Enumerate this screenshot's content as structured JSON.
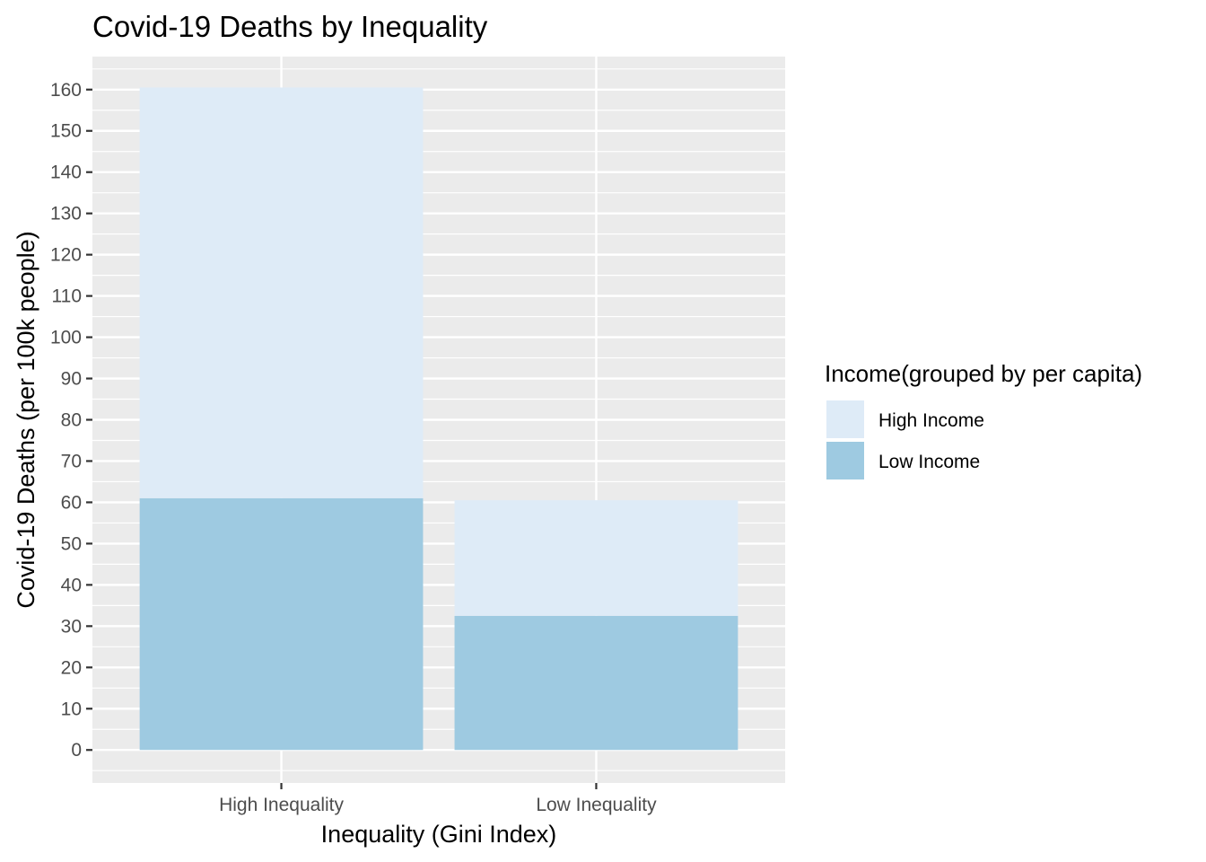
{
  "chart_data": {
    "type": "bar",
    "stacked": true,
    "title": "Covid-19 Deaths by Inequality",
    "xlabel": "Inequality (Gini Index)",
    "ylabel": "Covid-19 Deaths (per 100k people)",
    "categories": [
      "High Inequality",
      "Low Inequality"
    ],
    "series": [
      {
        "name": "Low Income",
        "values": [
          61,
          32.5
        ],
        "color": "#9ecae1"
      },
      {
        "name": "High Income",
        "values": [
          99.5,
          28
        ],
        "color": "#deebf7"
      }
    ],
    "ylim": [
      -8,
      168
    ],
    "yticks": [
      0,
      10,
      20,
      30,
      40,
      50,
      60,
      70,
      80,
      90,
      100,
      110,
      120,
      130,
      140,
      150,
      160
    ],
    "grid": true,
    "panel_background": "#ebebeb",
    "legend": {
      "title": "Income(grouped by per capita)",
      "placement": "right",
      "entries": [
        {
          "label": "High Income",
          "color": "#deebf7"
        },
        {
          "label": "Low Income",
          "color": "#9ecae1"
        }
      ]
    }
  }
}
